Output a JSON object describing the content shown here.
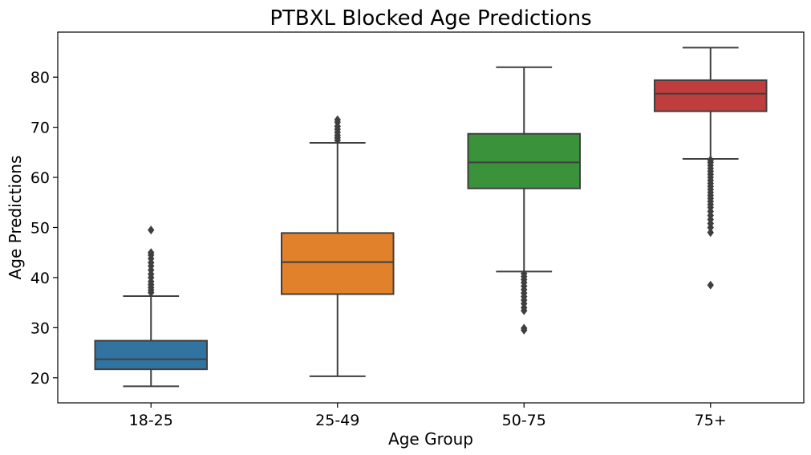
{
  "chart_data": {
    "type": "box",
    "title": "PTBXL Blocked Age Predictions",
    "xlabel": "Age Group",
    "ylabel": "Age Predictions",
    "ylim": [
      15,
      89
    ],
    "yticks": [
      20,
      30,
      40,
      50,
      60,
      70,
      80
    ],
    "grid": false,
    "categories": [
      "18-25",
      "25-49",
      "50-75",
      "75+"
    ],
    "series": [
      {
        "category": "18-25",
        "color": "#3274a1",
        "whisker_low": 18.3,
        "q1": 21.7,
        "median": 23.7,
        "q3": 27.4,
        "whisker_high": 36.3,
        "outliers": [
          37.0,
          37.5,
          38.0,
          38.6,
          39.2,
          40.0,
          40.7,
          41.5,
          42.3,
          43.0,
          43.8,
          44.5,
          45.0,
          49.5
        ]
      },
      {
        "category": "25-49",
        "color": "#e1812c",
        "whisker_low": 20.3,
        "q1": 36.7,
        "median": 43.1,
        "q3": 48.9,
        "whisker_high": 66.9,
        "outliers": [
          67.4,
          67.9,
          68.4,
          69.0,
          69.6,
          70.2,
          71.0,
          71.5
        ]
      },
      {
        "category": "50-75",
        "color": "#3a923a",
        "whisker_low": 41.2,
        "q1": 57.8,
        "median": 63.0,
        "q3": 68.7,
        "whisker_high": 82.0,
        "outliers": [
          40.8,
          40.2,
          39.6,
          39.0,
          38.3,
          37.6,
          36.9,
          36.2,
          35.5,
          34.8,
          34.0,
          33.4,
          29.9,
          29.5
        ]
      },
      {
        "category": "75+",
        "color": "#c03d3e",
        "whisker_low": 63.7,
        "q1": 73.2,
        "median": 76.7,
        "q3": 79.4,
        "whisker_high": 85.9,
        "outliers": [
          63.5,
          63.0,
          62.4,
          61.8,
          61.2,
          60.6,
          60.0,
          59.4,
          58.8,
          58.2,
          57.6,
          57.0,
          56.4,
          55.8,
          55.2,
          54.6,
          54.0,
          53.2,
          52.4,
          51.6,
          50.8,
          50.0,
          49.0,
          38.5
        ]
      }
    ]
  }
}
